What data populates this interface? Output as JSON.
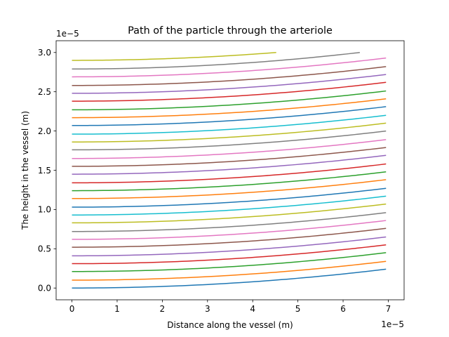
{
  "chart_data": {
    "type": "line",
    "title": "Path of the particle through the arteriole",
    "xlabel": "Distance along the vessel (m)",
    "ylabel": "The height in the vessel (m)",
    "x_offset_text": "1e−5",
    "y_offset_text": "1e−5",
    "xlim": [
      -0.35,
      7.35
    ],
    "ylim": [
      -0.15,
      3.15
    ],
    "x_ticks": [
      {
        "value": 0,
        "label": "0"
      },
      {
        "value": 1,
        "label": "1"
      },
      {
        "value": 2,
        "label": "2"
      },
      {
        "value": 3,
        "label": "3"
      },
      {
        "value": 4,
        "label": "4"
      },
      {
        "value": 5,
        "label": "5"
      },
      {
        "value": 6,
        "label": "6"
      },
      {
        "value": 7,
        "label": "7"
      }
    ],
    "y_ticks": [
      {
        "value": 0.0,
        "label": "0.0"
      },
      {
        "value": 0.5,
        "label": "0.5"
      },
      {
        "value": 1.0,
        "label": "1.0"
      },
      {
        "value": 1.5,
        "label": "1.5"
      },
      {
        "value": 2.0,
        "label": "2.0"
      },
      {
        "value": 2.5,
        "label": "2.5"
      },
      {
        "value": 3.0,
        "label": "3.0"
      }
    ],
    "grid": false,
    "legend": "none",
    "curve_family": {
      "y_start_values": [
        0.0,
        0.1,
        0.21,
        0.31,
        0.41,
        0.52,
        0.62,
        0.72,
        0.83,
        0.93,
        1.03,
        1.14,
        1.24,
        1.34,
        1.45,
        1.55,
        1.65,
        1.76,
        1.86,
        1.96,
        2.07,
        2.17,
        2.27,
        2.38,
        2.48,
        2.58,
        2.69,
        2.79,
        2.9
      ],
      "x_end_values": [
        6.95,
        6.95,
        6.95,
        6.95,
        6.95,
        6.95,
        6.95,
        6.95,
        6.95,
        6.95,
        6.95,
        6.95,
        6.95,
        6.95,
        6.95,
        6.95,
        6.95,
        6.95,
        6.95,
        6.95,
        6.95,
        6.95,
        6.95,
        6.95,
        6.95,
        6.95,
        6.95,
        6.37,
        4.52
      ],
      "y_end_values": [
        0.24,
        0.34,
        0.45,
        0.55,
        0.65,
        0.76,
        0.86,
        0.96,
        1.07,
        1.17,
        1.27,
        1.38,
        1.48,
        1.58,
        1.69,
        1.79,
        1.89,
        2.0,
        2.1,
        2.2,
        2.31,
        2.41,
        2.51,
        2.62,
        2.72,
        2.82,
        2.93,
        3.0,
        3.0
      ]
    },
    "colors": [
      "#1f77b4",
      "#ff7f0e",
      "#2ca02c",
      "#d62728",
      "#9467bd",
      "#8c564b",
      "#e377c2",
      "#7f7f7f",
      "#bcbd22",
      "#17becf"
    ]
  }
}
